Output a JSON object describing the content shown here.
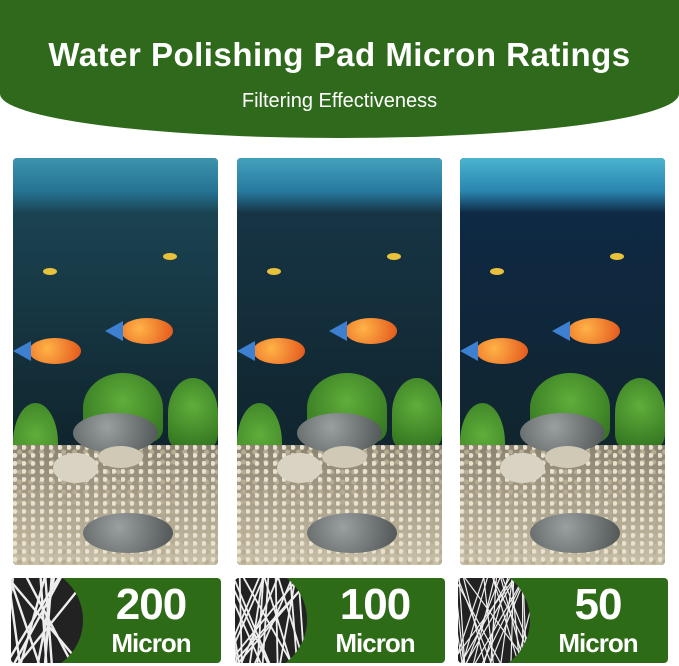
{
  "header": {
    "title": "Water Polishing Pad Micron Ratings",
    "subtitle": "Filtering Effectiveness",
    "color": "#2f6a1c"
  },
  "ratings": [
    {
      "value": "200",
      "unit": "Micron",
      "water_color": "#1d4a5a"
    },
    {
      "value": "100",
      "unit": "Micron",
      "water_color": "#18384a"
    },
    {
      "value": "50",
      "unit": "Micron",
      "water_color": "#0e2a4a"
    }
  ]
}
